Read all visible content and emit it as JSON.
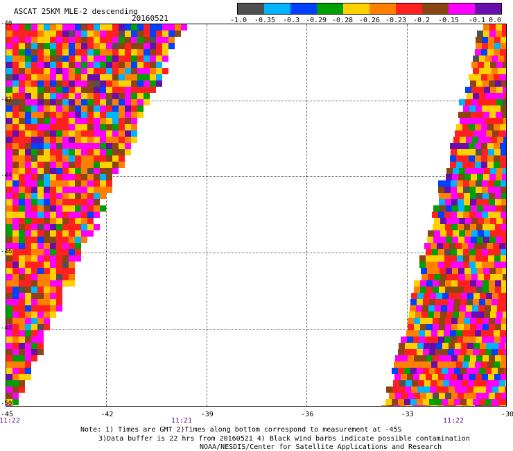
{
  "header": {
    "title": "ASCAT 25KM MLE-2 descending",
    "date": "20160521"
  },
  "colorbar": {
    "colors": [
      "#505050",
      "#00b4ff",
      "#0040ff",
      "#00a000",
      "#ffd000",
      "#ff8000",
      "#ff2020",
      "#8b4513",
      "#ff00ff",
      "#6a0dad"
    ],
    "labels": [
      "-1.0",
      "-0.35",
      "-0.3",
      "-0.29",
      "-0.28",
      "-0.26",
      "-0.23",
      "-0.2",
      "-0.15",
      "-0.1",
      "0.0"
    ]
  },
  "axes": {
    "y_ticks": [
      "-40",
      "-42",
      "-44",
      "-46",
      "-48",
      "-50"
    ],
    "x_ticks": [
      "-45",
      "-42",
      "-39",
      "-36",
      "-33",
      "-30"
    ],
    "ylim": [
      -50,
      -40
    ],
    "xlim": [
      -45,
      -30
    ],
    "grid": true
  },
  "swath_times": [
    "11:22",
    "11:21",
    "11:22"
  ],
  "notes": [
    "Note: 1) Times are GMT 2)Times along bottom correspond to measurement at -45S",
    "3)Data buffer is 22 hrs from 20160521 4) Black wind barbs indicate possible contamination",
    "NOAA/NESDIS/Center for Satellite Applications and Research"
  ]
}
